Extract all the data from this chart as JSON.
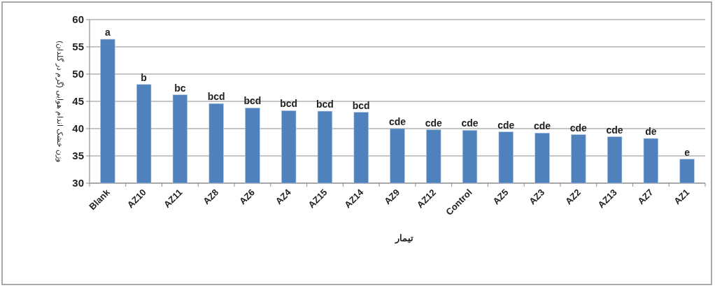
{
  "chart_data": {
    "type": "bar",
    "xlabel": "تیمار",
    "ylabel": "وزن خشک اندام هوایی (گرم در گلدان)",
    "categories": [
      "Blank",
      "AZ10",
      "AZ11",
      "AZ8",
      "AZ6",
      "AZ4",
      "AZ15",
      "AZ14",
      "AZ9",
      "AZ12",
      "Control",
      "AZ5",
      "AZ3",
      "AZ2",
      "AZ13",
      "AZ7",
      "AZ1"
    ],
    "values": [
      56.4,
      48.1,
      46.2,
      44.6,
      43.8,
      43.3,
      43.2,
      43.0,
      40.0,
      39.8,
      39.7,
      39.4,
      39.2,
      38.9,
      38.5,
      38.2,
      34.4
    ],
    "color": "#4f81bd",
    "ylim": [
      30,
      60
    ],
    "yticks": [
      30,
      35,
      40,
      45,
      50,
      55,
      60
    ],
    "grid": "y",
    "annotations": [
      {
        "text": "a",
        "x": "Blank",
        "y": 56.4
      },
      {
        "text": "b",
        "x": "AZ10",
        "y": 48.1
      },
      {
        "text": "bc",
        "x": "AZ11",
        "y": 46.2
      },
      {
        "text": "bcd",
        "x": "AZ8",
        "y": 44.6
      },
      {
        "text": "bcd",
        "x": "AZ6",
        "y": 43.8
      },
      {
        "text": "bcd",
        "x": "AZ4",
        "y": 43.3
      },
      {
        "text": "bcd",
        "x": "AZ15",
        "y": 43.2
      },
      {
        "text": "bcd",
        "x": "AZ14",
        "y": 43.0
      },
      {
        "text": "cde",
        "x": "AZ9",
        "y": 40.0
      },
      {
        "text": "cde",
        "x": "AZ12",
        "y": 39.8
      },
      {
        "text": "cde",
        "x": "Control",
        "y": 39.7
      },
      {
        "text": "cde",
        "x": "AZ5",
        "y": 39.4
      },
      {
        "text": "cde",
        "x": "AZ3",
        "y": 39.2
      },
      {
        "text": "cde",
        "x": "AZ2",
        "y": 38.9
      },
      {
        "text": "cde",
        "x": "AZ13",
        "y": 38.5
      },
      {
        "text": "de",
        "x": "AZ7",
        "y": 38.2
      },
      {
        "text": "e",
        "x": "AZ1",
        "y": 34.4
      }
    ]
  }
}
